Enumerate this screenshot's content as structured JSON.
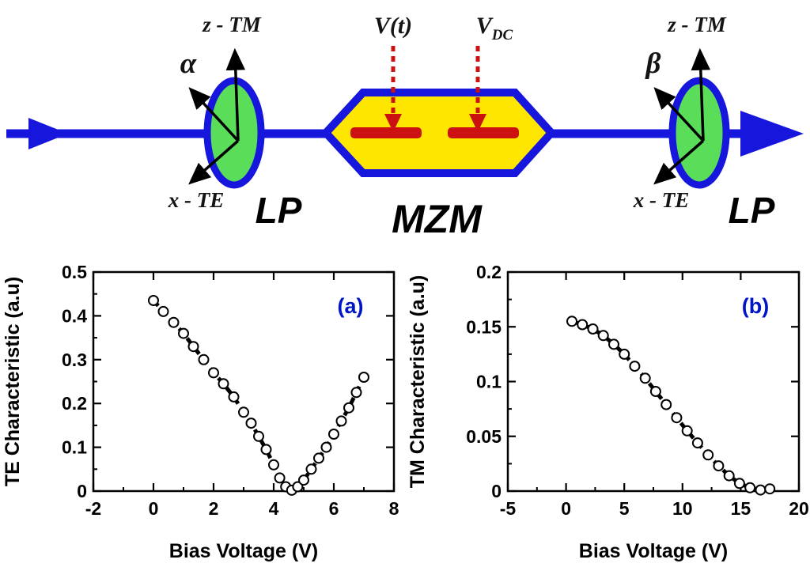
{
  "figure": {
    "background": "#ffffff"
  },
  "diagram": {
    "colors": {
      "beam": "#1616dd",
      "polarizer_fill": "#5ade5a",
      "polarizer_stroke": "#1616dd",
      "mzm_fill": "#ffe600",
      "mzm_stroke": "#1616dd",
      "electrode": "#cc1111",
      "voltage_arrow": "#cc1111",
      "axis_arrow": "#000000"
    },
    "left_polarizer": {
      "axis_up_label": "z - TM",
      "angle_label": "α",
      "axis_down_label": "x - TE",
      "name_label": "LP"
    },
    "right_polarizer": {
      "axis_up_label": "z - TM",
      "angle_label": "β",
      "axis_down_label": "x - TE",
      "name_label": "LP"
    },
    "mzm": {
      "name_label": "MZM",
      "drive_voltage_label": "V(t)",
      "bias_voltage_main": "V",
      "bias_voltage_sub": "DC"
    }
  },
  "chart_data": [
    {
      "type": "scatter",
      "panel_label": "(a)",
      "title": "",
      "xlabel": "Bias Voltage (V)",
      "ylabel": "TE Characteristic (a.u)",
      "xlim": [
        -2,
        8
      ],
      "ylim": [
        0,
        0.5
      ],
      "xticks": [
        "-2",
        "0",
        "2",
        "4",
        "6",
        "8"
      ],
      "yticks": [
        "0",
        "0.1",
        "0.2",
        "0.3",
        "0.4",
        "0.5"
      ],
      "marker": "open-circle",
      "line_style": "dashed",
      "line_color": "#000000",
      "annotation_color": "#0014c8",
      "x": [
        0,
        0.33,
        0.67,
        1,
        1.33,
        1.67,
        2,
        2.33,
        2.67,
        3,
        3.25,
        3.5,
        3.75,
        4,
        4.2,
        4.4,
        4.6,
        4.8,
        5,
        5.25,
        5.5,
        5.75,
        6,
        6.25,
        6.5,
        6.75,
        7
      ],
      "y": [
        0.435,
        0.41,
        0.385,
        0.36,
        0.33,
        0.3,
        0.27,
        0.245,
        0.215,
        0.18,
        0.155,
        0.125,
        0.095,
        0.06,
        0.03,
        0.01,
        0.002,
        0.01,
        0.025,
        0.05,
        0.075,
        0.1,
        0.13,
        0.16,
        0.19,
        0.225,
        0.26
      ]
    },
    {
      "type": "scatter",
      "panel_label": "(b)",
      "title": "",
      "xlabel": "Bias Voltage (V)",
      "ylabel": "TM Characteristic (a.u)",
      "xlim": [
        -5,
        20
      ],
      "ylim": [
        0,
        0.2
      ],
      "xticks": [
        "-5",
        "0",
        "5",
        "10",
        "15",
        "20"
      ],
      "yticks": [
        "0",
        "0.05",
        "0.1",
        "0.15",
        "0.2"
      ],
      "marker": "open-circle",
      "line_style": "dashed",
      "line_color": "#000000",
      "annotation_color": "#0014c8",
      "x": [
        0.5,
        1.4,
        2.3,
        3.2,
        4.1,
        5,
        5.9,
        6.8,
        7.7,
        8.6,
        9.5,
        10.4,
        11.3,
        12.2,
        13.1,
        14,
        14.9,
        15.8,
        16.7,
        17.5
      ],
      "y": [
        0.155,
        0.152,
        0.148,
        0.142,
        0.134,
        0.125,
        0.114,
        0.103,
        0.091,
        0.079,
        0.067,
        0.055,
        0.044,
        0.033,
        0.023,
        0.014,
        0.007,
        0.003,
        0.001,
        0.002
      ]
    }
  ]
}
